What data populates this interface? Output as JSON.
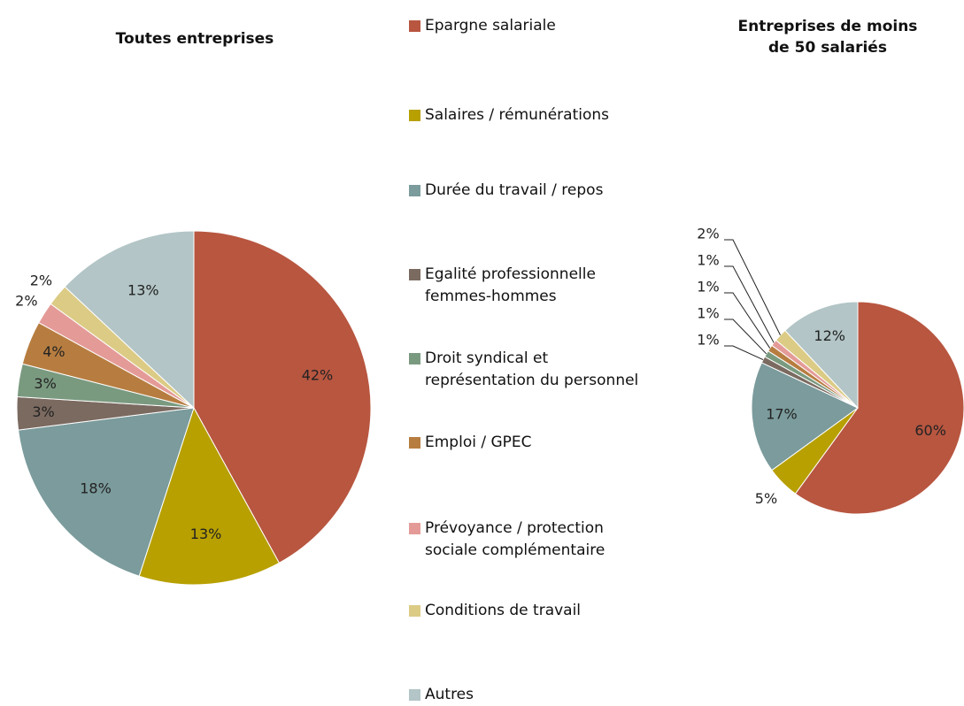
{
  "legend": {
    "labels": [
      "Epargne salariale",
      "Salaires / rémunérations",
      "Durée du travail / repos",
      "Egalité professionnelle femmes-hommes",
      "Droit syndical et représentation du personnel",
      "Emploi / GPEC",
      "Prévoyance / protection sociale complémentaire",
      "Conditions de travail",
      "Autres"
    ],
    "colors": [
      "#b85640",
      "#b7a000",
      "#7b9b9c",
      "#7b6a60",
      "#7a9a80",
      "#b77d40",
      "#e49b98",
      "#dccb85",
      "#b3c5c6"
    ]
  },
  "chart_data": [
    {
      "type": "pie",
      "title": "Toutes entreprises",
      "values": [
        42,
        13,
        18,
        3,
        3,
        4,
        2,
        2,
        13
      ],
      "value_labels": [
        "42%",
        "13%",
        "18%",
        "3%",
        "3%",
        "4%",
        "2%",
        "2%",
        "13%"
      ]
    },
    {
      "type": "pie",
      "title": "Entreprises de moins de 50 salariés",
      "values": [
        60,
        5,
        17,
        1,
        1,
        1,
        1,
        2,
        12
      ],
      "value_labels": [
        "60%",
        "5%",
        "17%",
        "1%",
        "1%",
        "1%",
        "1%",
        "2%",
        "12%"
      ]
    }
  ]
}
